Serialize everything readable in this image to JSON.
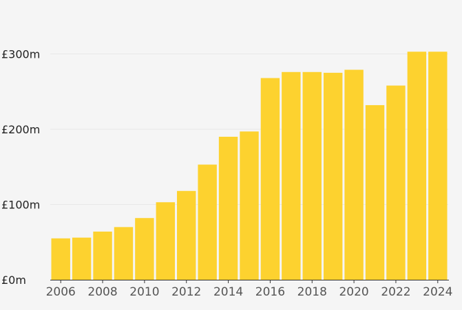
{
  "chart_data": {
    "type": "bar",
    "title": "",
    "xlabel": "",
    "ylabel": "",
    "categories": [
      "2006",
      "2007",
      "2008",
      "2009",
      "2010",
      "2011",
      "2012",
      "2013",
      "2014",
      "2015",
      "2016",
      "2017",
      "2018",
      "2019",
      "2020",
      "2021",
      "2022",
      "2023",
      "2024"
    ],
    "values": [
      55,
      56,
      64,
      70,
      82,
      103,
      118,
      153,
      190,
      197,
      268,
      276,
      276,
      275,
      279,
      232,
      258,
      303,
      303
    ],
    "value_unit": "£m",
    "ylim": [
      0,
      330
    ],
    "yticks": [
      {
        "value": 0,
        "label": "£0m"
      },
      {
        "value": 100,
        "label": "£100m"
      },
      {
        "value": 200,
        "label": "£200m"
      },
      {
        "value": 300,
        "label": "£300m"
      }
    ],
    "xtick_labels": [
      "2006",
      "2008",
      "2010",
      "2012",
      "2014",
      "2016",
      "2018",
      "2020",
      "2022",
      "2024"
    ],
    "grid": true,
    "colors": {
      "bar": "#fdd22f",
      "background": "#f5f5f5",
      "grid": "#e8e8e8",
      "axis": "#333333"
    }
  }
}
